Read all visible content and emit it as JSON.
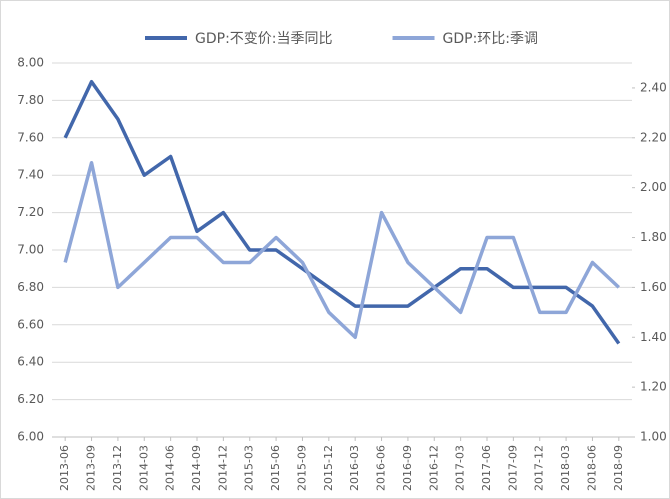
{
  "chart_data": {
    "type": "line",
    "categories": [
      "2013-06",
      "2013-09",
      "2013-12",
      "2014-03",
      "2014-06",
      "2014-09",
      "2014-12",
      "2015-03",
      "2015-06",
      "2015-09",
      "2015-12",
      "2016-03",
      "2016-06",
      "2016-09",
      "2016-12",
      "2017-03",
      "2017-06",
      "2017-09",
      "2017-12",
      "2018-03",
      "2018-06",
      "2018-09"
    ],
    "series": [
      {
        "name": "GDP:不变价:当季同比",
        "color": "#4267ab",
        "axis": "y",
        "values": [
          7.6,
          7.9,
          7.7,
          7.4,
          7.5,
          7.1,
          7.2,
          7.0,
          7.0,
          6.9,
          6.8,
          6.7,
          6.7,
          6.7,
          6.8,
          6.9,
          6.9,
          6.8,
          6.8,
          6.8,
          6.7,
          6.5
        ]
      },
      {
        "name": "GDP:环比:季调",
        "color": "#8ea6d8",
        "axis": "y2",
        "values": [
          1.7,
          2.1,
          1.6,
          1.7,
          1.8,
          1.8,
          1.7,
          1.7,
          1.8,
          1.7,
          1.5,
          1.4,
          1.9,
          1.7,
          1.6,
          1.5,
          1.8,
          1.8,
          1.5,
          1.5,
          1.7,
          1.6
        ]
      }
    ],
    "ylim": [
      6.0,
      8.0
    ],
    "yticks": [
      {
        "value": 6.0,
        "label": "6.00"
      },
      {
        "value": 6.2,
        "label": "6.20"
      },
      {
        "value": 6.4,
        "label": "6.40"
      },
      {
        "value": 6.6,
        "label": "6.60"
      },
      {
        "value": 6.8,
        "label": "6.80"
      },
      {
        "value": 7.0,
        "label": "7.00"
      },
      {
        "value": 7.2,
        "label": "7.20"
      },
      {
        "value": 7.4,
        "label": "7.40"
      },
      {
        "value": 7.6,
        "label": "7.60"
      },
      {
        "value": 7.8,
        "label": "7.80"
      },
      {
        "value": 8.0,
        "label": "8.00"
      }
    ],
    "y2lim": [
      1.0,
      2.5
    ],
    "y2ticks": [
      {
        "value": 1.0,
        "label": "1.00"
      },
      {
        "value": 1.2,
        "label": "1.20"
      },
      {
        "value": 1.4,
        "label": "1.40"
      },
      {
        "value": 1.6,
        "label": "1.60"
      },
      {
        "value": 1.8,
        "label": "1.80"
      },
      {
        "value": 2.0,
        "label": "2.00"
      },
      {
        "value": 2.2,
        "label": "2.20"
      },
      {
        "value": 2.4,
        "label": "2.40"
      }
    ],
    "grid": true,
    "legend": "top"
  }
}
